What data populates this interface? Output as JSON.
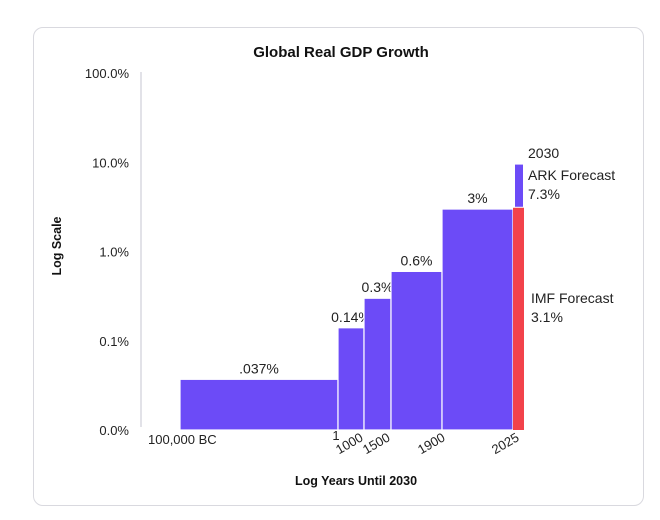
{
  "chart_data": {
    "type": "bar",
    "title": "Global Real GDP Growth",
    "xlabel": "Log Years Until 2030",
    "ylabel": "Log Scale",
    "y_scale": "log",
    "y_ticks": [
      "0.0%",
      "0.1%",
      "1.0%",
      "10.0%",
      "100.0%"
    ],
    "x_ticks": [
      "100,000 BC",
      "1",
      "1000",
      "1500",
      "1900",
      "2025"
    ],
    "colors": {
      "bar": "#6C4BF7",
      "imf": "#F2424B",
      "axis": "#d9d9e0"
    },
    "bars": [
      {
        "start": "100,000 BC",
        "end": "1",
        "value": 0.037,
        "label": ".037%"
      },
      {
        "start": "1",
        "end": "1000",
        "value": 0.14,
        "label": "0.14%"
      },
      {
        "start": "1000",
        "end": "1500",
        "value": 0.3,
        "label": "0.3%"
      },
      {
        "start": "1500",
        "end": "1900",
        "value": 0.6,
        "label": "0.6%"
      },
      {
        "start": "1900",
        "end": "2025",
        "value": 3.0,
        "label": "3%"
      }
    ],
    "forecasts": [
      {
        "name": "IMF Forecast",
        "value": 3.1,
        "label": "3.1%"
      },
      {
        "name": "ARK Forecast",
        "value": 7.3,
        "label": "7.3%",
        "year": "2030"
      }
    ]
  }
}
